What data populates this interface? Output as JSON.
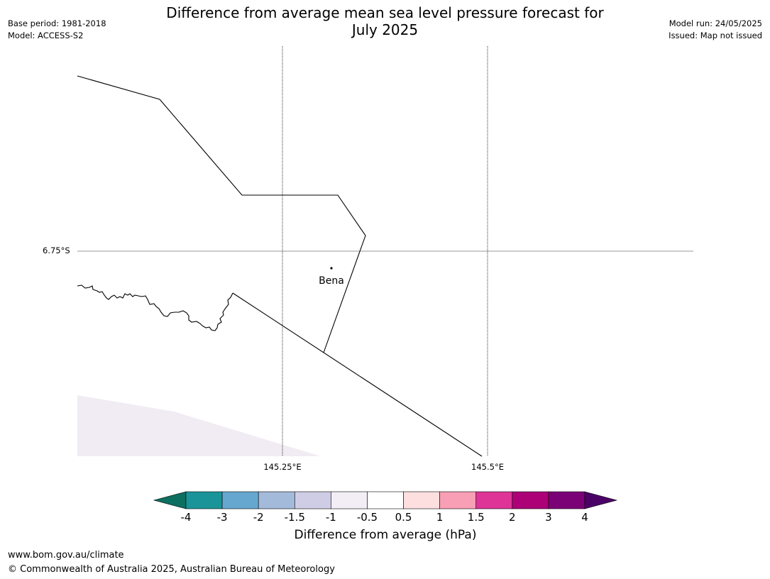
{
  "header": {
    "title_line1": "Difference from average mean sea level pressure forecast for",
    "title_line2": "July 2025",
    "base_period": "Base period: 1981-2018",
    "model": "Model: ACCESS-S2",
    "model_run": "Model run: 24/05/2025",
    "issued": "Issued: Map not issued"
  },
  "map": {
    "lat_label": "6.75°S",
    "lon_labels": [
      "145.25°E",
      "145.5°E"
    ],
    "place_label": "Bena"
  },
  "colorbar": {
    "title": "Difference from average (hPa)",
    "ticks": [
      "-4",
      "-3",
      "-2",
      "-1.5",
      "-1",
      "-0.5",
      "0.5",
      "1",
      "1.5",
      "2",
      "3",
      "4"
    ],
    "colors": [
      "#0d6f60",
      "#1a9499",
      "#66a7cf",
      "#a4badb",
      "#cfcde5",
      "#f3eef6",
      "#ffffff",
      "#fddfe0",
      "#f89fb5",
      "#de3497",
      "#ac0177",
      "#7b0177",
      "#4b0267"
    ]
  },
  "footer": {
    "url": "www.bom.gov.au/climate",
    "copyright": "© Commonwealth of Australia 2025, Australian Bureau of Meteorology"
  }
}
